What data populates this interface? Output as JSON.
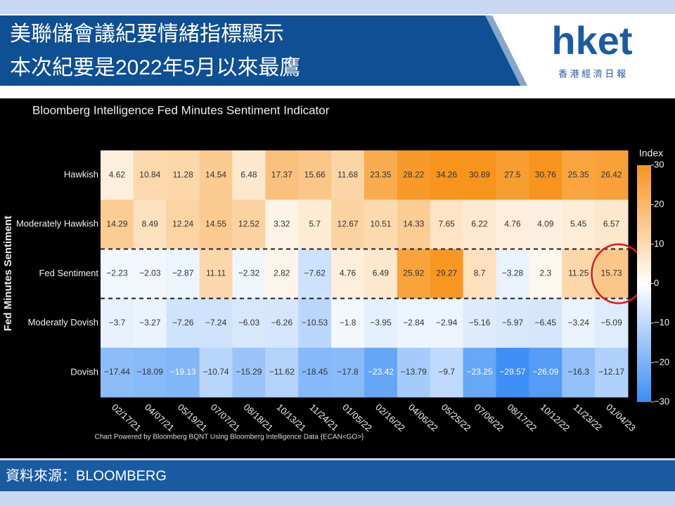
{
  "header": {
    "title_line1": "美聯儲會議紀要情緒指標顯示",
    "title_line2": "本次紀要是2022年5月以來最鷹",
    "logo": "hket",
    "logo_sub": "香 港 經 濟 日 報"
  },
  "chart_data": {
    "type": "heatmap",
    "title": "Bloomberg Intelligence Fed Minutes Sentiment Indicator",
    "ylabel": "Fed Minutes Sentiment",
    "note": "Chart Powered by Bloomberg BQNT Using Bloomberg Intelligence Data {ECAN<GO>}",
    "categories": [
      "02/17/21",
      "04/07/21",
      "05/19/21",
      "07/07/21",
      "08/18/21",
      "10/13/21",
      "11/24/21",
      "01/05/22",
      "02/16/22",
      "04/06/22",
      "05/25/22",
      "07/06/22",
      "08/17/22",
      "10/12/22",
      "11/23/22",
      "01/04/23"
    ],
    "series": [
      {
        "name": "Hawkish",
        "values": [
          4.62,
          10.84,
          11.28,
          14.54,
          6.48,
          17.37,
          15.66,
          11.68,
          23.35,
          28.22,
          34.26,
          30.89,
          27.5,
          30.76,
          25.35,
          26.42
        ],
        "value_labels": [
          "4.62",
          "10.84",
          "11.28",
          "14.54",
          "6.48",
          "17.37",
          "15.66",
          "11.68",
          "23.35",
          "28.22",
          "34.26",
          "30.89",
          "27.5",
          "30.76",
          "25.35",
          "26.42"
        ]
      },
      {
        "name": "Moderately Hawkish",
        "values": [
          14.29,
          8.49,
          12.24,
          14.55,
          12.52,
          3.32,
          5.7,
          12.67,
          10.51,
          14.33,
          7.65,
          6.22,
          4.76,
          4.09,
          5.45,
          6.57
        ],
        "value_labels": [
          "14.29",
          "8.49",
          "12.24",
          "14.55",
          "12.52",
          "3.32",
          "5.7",
          "12.67",
          "10.51",
          "14.33",
          "7.65",
          "6.22",
          "4.76",
          "4.09",
          "5.45",
          "6.57"
        ]
      },
      {
        "name": "Fed Sentiment",
        "values": [
          -2.23,
          -2.03,
          -2.87,
          11.11,
          -2.32,
          2.82,
          -7.62,
          4.76,
          6.49,
          25.92,
          29.27,
          8.7,
          -3.28,
          2.3,
          11.25,
          15.73
        ],
        "value_labels": [
          "−2.23",
          "−2.03",
          "−2.87",
          "11.11",
          "−2.32",
          "2.82",
          "−7.62",
          "4.76",
          "6.49",
          "25.92",
          "29.27",
          "8.7",
          "−3.28",
          "2.3",
          "11.25",
          "15.73"
        ]
      },
      {
        "name": "Moderatly Dovish",
        "values": [
          -3.7,
          -3.27,
          -7.26,
          -7.24,
          -6.03,
          -6.26,
          -10.53,
          -1.8,
          -3.95,
          -2.84,
          -2.94,
          -5.16,
          -5.97,
          -6.45,
          -3.24,
          -5.09
        ],
        "value_labels": [
          "−3.7",
          "−3.27",
          "−7.26",
          "−7.24",
          "−6.03",
          "−6.26",
          "−10.53",
          "−1.8",
          "−3.95",
          "−2.84",
          "−2.94",
          "−5.16",
          "−5.97",
          "−6.45",
          "−3.24",
          "−5.09"
        ]
      },
      {
        "name": "Dovish",
        "values": [
          -17.44,
          -18.09,
          -19.13,
          -10.74,
          -15.29,
          -11.62,
          -18.45,
          -17.8,
          -23.42,
          -13.79,
          -9.7,
          -23.25,
          -29.57,
          -26.09,
          -16.3,
          -12.17
        ],
        "value_labels": [
          "−17.44",
          "−18.09",
          "−19.13",
          "−10.74",
          "−15.29",
          "−11.62",
          "−18.45",
          "−17.8",
          "−23.42",
          "−13.79",
          "−9.7",
          "−23.25",
          "−29.57",
          "−26.09",
          "−16.3",
          "−12.17"
        ]
      }
    ],
    "colors": [
      "#3a8df5",
      "#ffffff",
      "#f7941d"
    ],
    "clim": [
      -30,
      30
    ],
    "cticks": [
      {
        "value": -30,
        "label": "−30"
      },
      {
        "value": -20,
        "label": "−20"
      },
      {
        "value": -10,
        "label": "−10"
      },
      0,
      10,
      20,
      30
    ],
    "colorbar_title": "Index"
  },
  "source": "資料來源：BLOOMBERG"
}
